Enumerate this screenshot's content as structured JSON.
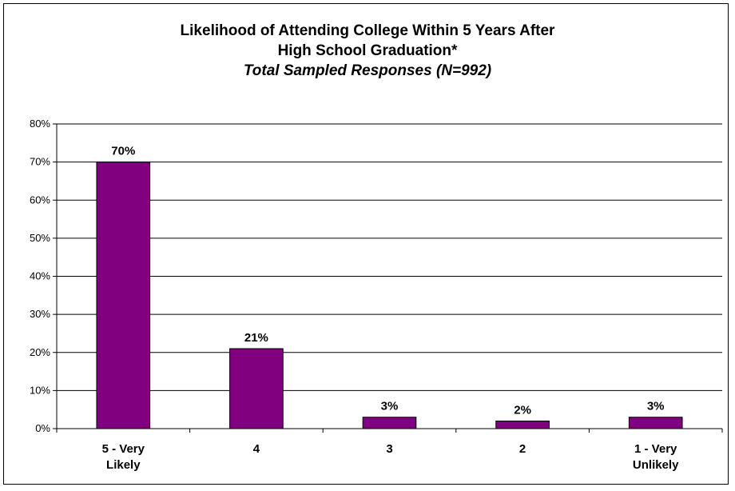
{
  "chart_data": {
    "type": "bar",
    "title_lines": [
      "Likelihood of Attending College Within 5 Years After",
      "High School Graduation*"
    ],
    "subtitle": "Total Sampled Responses (N=992)",
    "categories": [
      [
        "5 - Very",
        "Likely"
      ],
      [
        "4"
      ],
      [
        "3"
      ],
      [
        "2"
      ],
      [
        "1 - Very",
        "Unlikely"
      ]
    ],
    "values": [
      70,
      21,
      3,
      2,
      3
    ],
    "data_labels": [
      "70%",
      "21%",
      "3%",
      "2%",
      "3%"
    ],
    "ylim": [
      0,
      80
    ],
    "yticks": [
      "0%",
      "10%",
      "20%",
      "30%",
      "40%",
      "50%",
      "60%",
      "70%",
      "80%"
    ],
    "grid": true,
    "bar_color": "#800080"
  }
}
